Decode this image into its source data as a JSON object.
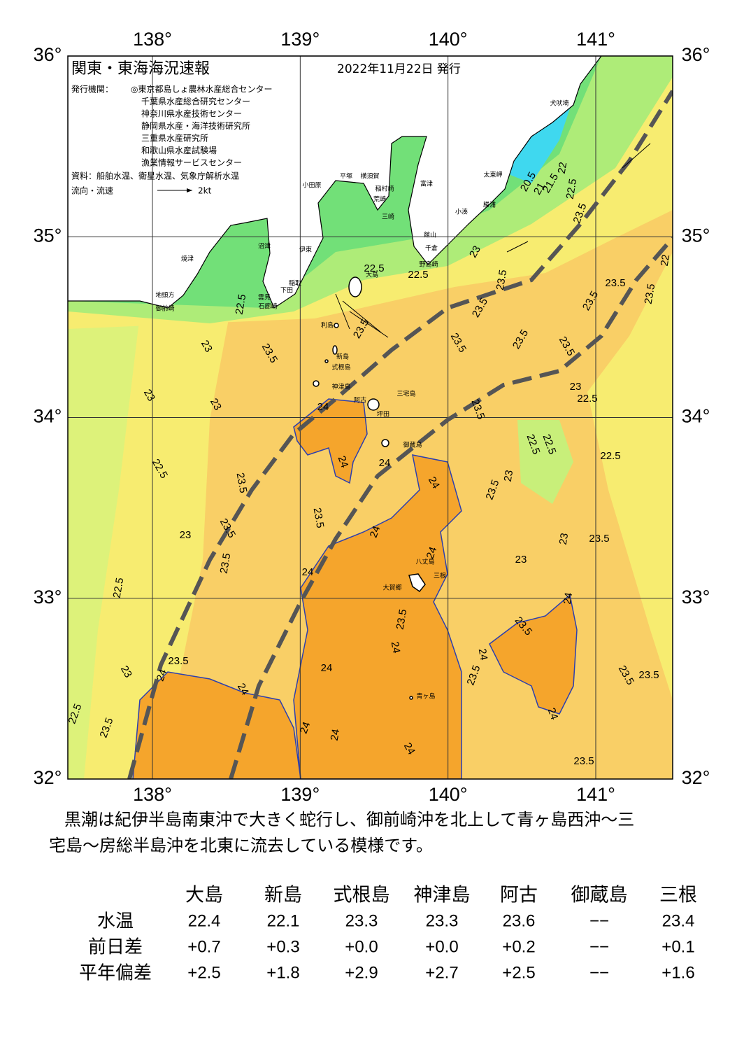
{
  "header": {
    "title": "関東・東海海況速報",
    "date": "2022年11月22日 発行",
    "issuers_label": "発行機関：",
    "issuers": [
      "◎東京都島しょ農林水産総合センター",
      "千葉県水産総合研究センター",
      "神奈川県水産技術センター",
      "静岡県水産・海洋技術研究所",
      "三重県水産研究所",
      "和歌山県水産試験場",
      "漁業情報サービスセンター"
    ],
    "source": "資料：船舶水温、衛星水温、気象庁解析水温",
    "flow_label": "流向・流速",
    "flow_scale": "2kt"
  },
  "map": {
    "lon_ticks": [
      {
        "value": 138,
        "label": "138°"
      },
      {
        "value": 139,
        "label": "139°"
      },
      {
        "value": 140,
        "label": "140°"
      },
      {
        "value": 141,
        "label": "141°"
      }
    ],
    "lat_ticks": [
      {
        "value": 36,
        "label": "36°"
      },
      {
        "value": 35,
        "label": "35°"
      },
      {
        "value": 34,
        "label": "34°"
      },
      {
        "value": 33,
        "label": "33°"
      },
      {
        "value": 32,
        "label": "32°"
      }
    ],
    "places": [
      "沼津",
      "伊東",
      "焼津",
      "地頭方",
      "御前崎",
      "雲見",
      "石廊崎",
      "下田",
      "稲取",
      "大島",
      "利島",
      "新島",
      "式根島",
      "神津島",
      "三宅島",
      "阿古",
      "坪田",
      "御蔵島",
      "八丈島",
      "三根",
      "大賀郷",
      "青ヶ島",
      "小田原",
      "平塚",
      "横須賀",
      "稲村崎",
      "荒崎",
      "三崎",
      "富津",
      "小湊",
      "勝浦",
      "太東岬",
      "犬吠埼",
      "館山",
      "千倉",
      "野島崎"
    ],
    "contour_labels": [
      "22.5",
      "22.5",
      "22.5",
      "23",
      "23.5",
      "23",
      "23",
      "22.5",
      "23.5",
      "23.5",
      "23.5",
      "23",
      "23.5",
      "22.5",
      "23.5",
      "23",
      "22.5",
      "23.5",
      "24",
      "24",
      "24",
      "24",
      "24",
      "24",
      "24",
      "23.5",
      "24",
      "24",
      "24",
      "24",
      "24",
      "24",
      "24",
      "24",
      "23.5",
      "23.5",
      "24",
      "24",
      "23.5",
      "23.5",
      "23.5",
      "23.5",
      "23",
      "23",
      "23.5",
      "23",
      "22.5",
      "22.5",
      "22.5",
      "22.5",
      "23",
      "23.5",
      "23.5",
      "23.5",
      "23.5",
      "23.5",
      "23.5",
      "23.5",
      "22",
      "23.5",
      "23.5",
      "23",
      "23.5",
      "23.5",
      "22.5",
      "22",
      "21.5",
      "21",
      "20.5"
    ]
  },
  "text": {
    "lines": [
      "黒潮は紀伊半島南東沖で大きく蛇行し、御前崎沖を北上して青ヶ島西沖～三",
      "宅島～房総半島沖を北東に流去している模様です。"
    ]
  },
  "table": {
    "columns": [
      "大島",
      "新島",
      "式根島",
      "神津島",
      "阿古",
      "御蔵島",
      "三根"
    ],
    "rows": [
      {
        "label": "水温",
        "values": [
          "22.4",
          "22.1",
          "23.3",
          "23.3",
          "23.6",
          "−−",
          "23.4"
        ]
      },
      {
        "label": "前日差",
        "values": [
          "+0.7",
          "+0.3",
          "+0.0",
          "+0.0",
          "+0.2",
          "−−",
          "+0.1"
        ]
      },
      {
        "label": "平年偏差",
        "values": [
          "+2.5",
          "+1.8",
          "+2.9",
          "+2.7",
          "+2.5",
          "−−",
          "+1.6"
        ]
      }
    ]
  }
}
